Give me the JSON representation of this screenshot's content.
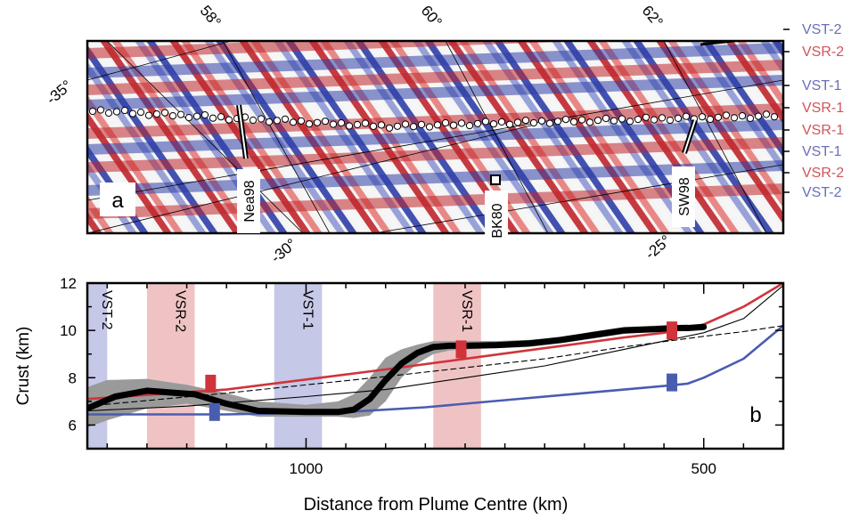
{
  "panel_a": {
    "panel_letter": "a",
    "lat_labels": [
      "-35°"
    ],
    "top_labels": [
      "58°",
      "60°",
      "62°"
    ],
    "bottom_labels": [
      "-30°",
      "-25°"
    ],
    "lineations": [
      {
        "label": "VST-2",
        "color": "#6a6fb8"
      },
      {
        "label": "VSR-2",
        "color": "#d0545a"
      },
      {
        "label": "VST-1",
        "color": "#6a6fb8"
      },
      {
        "label": "VSR-1",
        "color": "#d0545a"
      },
      {
        "label": "VSR-1",
        "color": "#d0545a"
      },
      {
        "label": "VST-1",
        "color": "#6a6fb8"
      },
      {
        "label": "VSR-2",
        "color": "#d0545a"
      },
      {
        "label": "VST-2",
        "color": "#6a6fb8"
      }
    ],
    "profile_labels": [
      "Nea98",
      "BK80",
      "SW98"
    ]
  },
  "chart_data": {
    "type": "line",
    "panel_letter": "b",
    "xlabel": "Distance from Plume Centre (km)",
    "ylabel": "Crust (km)",
    "x_ticks": [
      1000,
      500
    ],
    "xlim": [
      1275,
      400
    ],
    "ylim": [
      5,
      12
    ],
    "y_ticks": [
      6,
      8,
      10,
      12
    ],
    "bands": [
      {
        "label": "VST-2",
        "x0": 1275,
        "x1": 1250,
        "color": "#c5c8e6"
      },
      {
        "label": "VSR-2",
        "x0": 1200,
        "x1": 1140,
        "color": "#efc3c3"
      },
      {
        "label": "VST-1",
        "x0": 1040,
        "x1": 980,
        "color": "#c5c8e6"
      },
      {
        "label": "VSR-1",
        "x0": 840,
        "x1": 780,
        "color": "#efc3c3"
      }
    ],
    "series": [
      {
        "style": "red",
        "color": "#d0343a",
        "x": [
          1275,
          1100,
          900,
          700,
          600,
          550,
          500,
          450,
          400
        ],
        "y": [
          7.1,
          7.5,
          8.35,
          9.25,
          9.7,
          9.9,
          10.25,
          11.0,
          12.0
        ]
      },
      {
        "style": "blue",
        "color": "#4a5cb0",
        "x": [
          1275,
          1100,
          950,
          850,
          750,
          650,
          550,
          520,
          500,
          450,
          400
        ],
        "y": [
          6.45,
          6.45,
          6.55,
          6.75,
          7.05,
          7.35,
          7.65,
          7.75,
          8.0,
          8.8,
          10.2
        ]
      },
      {
        "style": "thin",
        "color": "#000000",
        "x": [
          1275,
          1150,
          1000,
          900,
          800,
          700,
          600,
          500,
          450,
          400
        ],
        "y": [
          6.6,
          6.8,
          7.2,
          7.5,
          8.0,
          8.5,
          9.2,
          9.9,
          10.5,
          11.9
        ]
      },
      {
        "style": "dashed",
        "color": "#000000",
        "x": [
          1275,
          1100,
          900,
          700,
          600,
          500,
          450,
          400
        ],
        "y": [
          6.8,
          7.35,
          8.05,
          8.8,
          9.3,
          9.75,
          9.95,
          10.2
        ]
      },
      {
        "style": "thick",
        "color": "#000000",
        "x": [
          1275,
          1240,
          1200,
          1160,
          1140,
          1100,
          1060,
          1000,
          960,
          940,
          920,
          900,
          880,
          860,
          840,
          820,
          800,
          760,
          720,
          680,
          640,
          600,
          560,
          540,
          520,
          500
        ],
        "y": [
          6.7,
          7.2,
          7.45,
          7.35,
          7.3,
          6.9,
          6.6,
          6.55,
          6.55,
          6.65,
          7.1,
          7.9,
          8.6,
          9.05,
          9.3,
          9.35,
          9.35,
          9.38,
          9.45,
          9.6,
          9.8,
          10.0,
          10.05,
          10.1,
          10.1,
          10.15
        ]
      }
    ],
    "uncertainty_band": {
      "color": "#9a9a9a",
      "x": [
        1275,
        1250,
        1200,
        1150,
        1100,
        1060,
        1000,
        960,
        940,
        920,
        900,
        880,
        860,
        840,
        820,
        800,
        760,
        720,
        680,
        640,
        600,
        560,
        520
      ],
      "upper": [
        7.6,
        7.9,
        7.95,
        7.7,
        7.35,
        7.0,
        6.85,
        7.0,
        7.3,
        8.0,
        8.85,
        9.2,
        9.4,
        9.55,
        9.55,
        9.55,
        9.55,
        9.6,
        9.7,
        9.95,
        10.15,
        10.2,
        10.25
      ],
      "lower": [
        5.9,
        6.2,
        6.7,
        6.9,
        6.6,
        6.35,
        6.35,
        6.35,
        6.3,
        6.4,
        7.0,
        8.0,
        8.6,
        9.0,
        9.15,
        9.2,
        9.25,
        9.3,
        9.45,
        9.65,
        9.85,
        9.95,
        10.0
      ]
    },
    "markers": [
      {
        "x": 1120,
        "y": 7.75,
        "color": "#d0343a"
      },
      {
        "x": 1115,
        "y": 6.55,
        "color": "#4a5cb0"
      },
      {
        "x": 805,
        "y": 9.2,
        "color": "#d0343a"
      },
      {
        "x": 540,
        "y": 10.0,
        "color": "#d0343a"
      },
      {
        "x": 540,
        "y": 7.8,
        "color": "#4a5cb0"
      }
    ]
  }
}
